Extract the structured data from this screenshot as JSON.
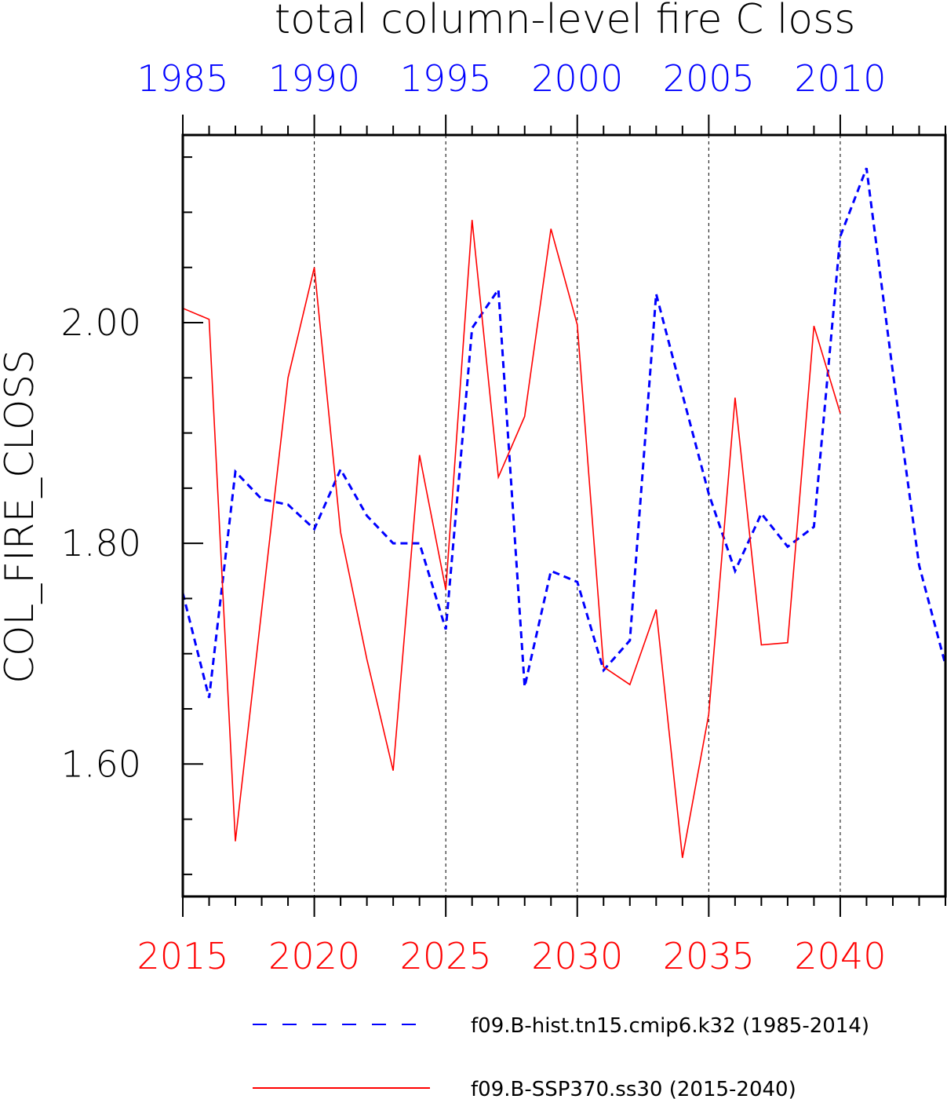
{
  "chart_data": {
    "type": "line",
    "title": "total column-level fire C loss",
    "ylabel": "COL_FIRE_CLOSS",
    "ylim": [
      1.48,
      2.17
    ],
    "y_major_ticks": [
      1.6,
      1.8,
      2.0
    ],
    "y_tick_labels": [
      "1.60",
      "1.80",
      "2.00"
    ],
    "y_minor_step": 0.05,
    "bottom_axis": {
      "xlim": [
        2015,
        2044
      ],
      "ticks": [
        2015,
        2020,
        2025,
        2030,
        2035,
        2040
      ],
      "tick_labels": [
        "2015",
        "2020",
        "2025",
        "2030",
        "2035",
        "2040"
      ],
      "color": "#ff0000"
    },
    "top_axis": {
      "xlim": [
        1985,
        2014
      ],
      "ticks": [
        1985,
        1990,
        1995,
        2000,
        2005,
        2010
      ],
      "tick_labels": [
        "1985",
        "1990",
        "1995",
        "2000",
        "2005",
        "2010"
      ],
      "color": "#0000ff"
    },
    "grid": "vertical dashed at major x ticks",
    "legend_position": "bottom",
    "series": [
      {
        "name": "f09.B-hist.tn15.cmip6.k32 (1985-2014)",
        "axis": "top",
        "color": "#0000ff",
        "style": "dashed",
        "x": [
          1985,
          1986,
          1987,
          1988,
          1989,
          1990,
          1991,
          1992,
          1993,
          1994,
          1995,
          1996,
          1997,
          1998,
          1999,
          2000,
          2001,
          2002,
          2003,
          2004,
          2005,
          2006,
          2007,
          2008,
          2009,
          2010,
          2011,
          2012,
          2013,
          2014
        ],
        "y": [
          1.755,
          1.66,
          1.865,
          1.84,
          1.835,
          1.813,
          1.867,
          1.825,
          1.8,
          1.8,
          1.722,
          1.995,
          2.03,
          1.67,
          1.775,
          1.765,
          1.685,
          1.712,
          2.026,
          1.935,
          1.845,
          1.775,
          1.827,
          1.797,
          1.815,
          2.078,
          2.14,
          1.955,
          1.78,
          1.69
        ]
      },
      {
        "name": "f09.B-SSP370.ss30 (2015-2040)",
        "axis": "bottom",
        "color": "#ff0000",
        "style": "solid",
        "x": [
          2015,
          2016,
          2017,
          2018,
          2019,
          2020,
          2021,
          2022,
          2023,
          2024,
          2025,
          2026,
          2027,
          2028,
          2029,
          2030,
          2031,
          2032,
          2033,
          2034,
          2035,
          2036,
          2037,
          2038,
          2039,
          2040
        ],
        "y": [
          2.013,
          2.003,
          1.53,
          1.74,
          1.95,
          2.05,
          1.81,
          1.695,
          1.594,
          1.88,
          1.758,
          2.093,
          1.86,
          1.915,
          2.085,
          1.998,
          1.688,
          1.672,
          1.74,
          1.515,
          1.645,
          1.932,
          1.708,
          1.71,
          1.997,
          1.918
        ]
      }
    ]
  }
}
